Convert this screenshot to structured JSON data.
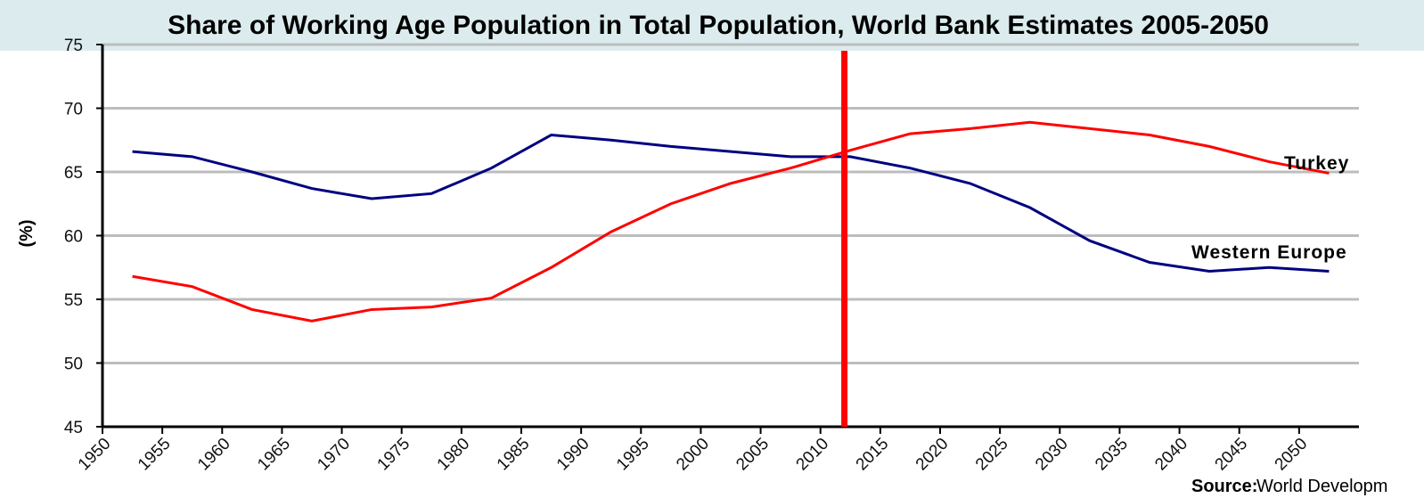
{
  "chart_data": {
    "type": "line",
    "title": "Share of Working Age Population in Total Population, World Bank Estimates 2005-2050",
    "y_label": "(%)",
    "source_label": "Source:",
    "source_text": "World Developm",
    "x": [
      1952.5,
      1957.5,
      1962.5,
      1967.5,
      1972.5,
      1977.5,
      1982.5,
      1987.5,
      1992.5,
      1997.5,
      2002.5,
      2007.5,
      2012.5,
      2017.5,
      2022.5,
      2027.5,
      2032.5,
      2037.5,
      2042.5,
      2047.5,
      2052.5
    ],
    "series": [
      {
        "name": "Western Europe",
        "color": "#000080",
        "values": [
          66.6,
          66.2,
          65.0,
          63.7,
          62.9,
          63.3,
          65.3,
          67.9,
          67.5,
          67.0,
          66.6,
          66.2,
          66.2,
          65.3,
          64.1,
          62.2,
          59.6,
          57.9,
          57.2,
          57.5,
          57.2
        ]
      },
      {
        "name": "Turkey",
        "color": "#ff0000",
        "values": [
          56.8,
          56.0,
          54.2,
          53.3,
          54.2,
          54.4,
          55.1,
          57.5,
          60.3,
          62.5,
          64.1,
          65.3,
          66.7,
          68.0,
          68.4,
          68.9,
          68.4,
          67.9,
          67.0,
          65.8,
          64.9
        ]
      }
    ],
    "vline": {
      "x": 2012,
      "color": "#ff0000"
    },
    "xlim": [
      1950,
      2055
    ],
    "xticks": [
      1950,
      1955,
      1960,
      1965,
      1970,
      1975,
      1980,
      1985,
      1990,
      1995,
      2000,
      2005,
      2010,
      2015,
      2020,
      2025,
      2030,
      2035,
      2040,
      2045,
      2050
    ],
    "ylim": [
      45,
      75
    ],
    "yticks": [
      45,
      50,
      55,
      60,
      65,
      70,
      75
    ],
    "grid": true
  }
}
